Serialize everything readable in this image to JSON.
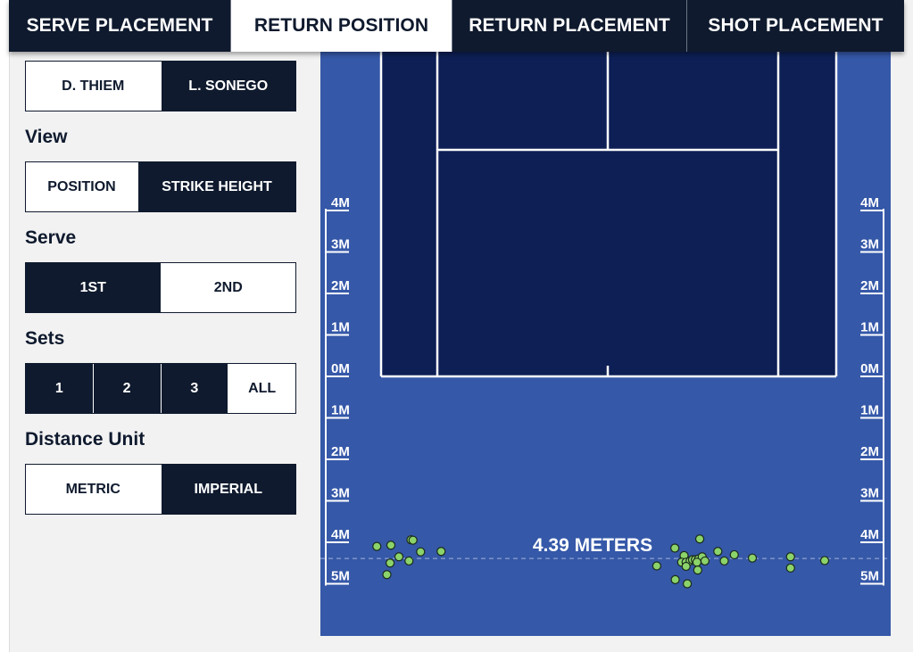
{
  "tabs": [
    {
      "label": "SERVE PLACEMENT",
      "active": false
    },
    {
      "label": "RETURN POSITION",
      "active": true
    },
    {
      "label": "RETURN PLACEMENT",
      "active": false
    },
    {
      "label": "SHOT PLACEMENT",
      "active": false
    }
  ],
  "players": {
    "options": [
      {
        "label": "D. THIEM",
        "selected": false
      },
      {
        "label": "L. SONEGO",
        "selected": true
      }
    ]
  },
  "view": {
    "title": "View",
    "options": [
      {
        "label": "POSITION",
        "selected": false
      },
      {
        "label": "STRIKE HEIGHT",
        "selected": true
      }
    ]
  },
  "serve": {
    "title": "Serve",
    "options": [
      {
        "label": "1ST",
        "selected": true
      },
      {
        "label": "2ND",
        "selected": false
      }
    ]
  },
  "sets": {
    "title": "Sets",
    "options": [
      {
        "label": "1",
        "selected": true
      },
      {
        "label": "2",
        "selected": true
      },
      {
        "label": "3",
        "selected": true
      },
      {
        "label": "ALL",
        "selected": false
      }
    ]
  },
  "distance_unit": {
    "title": "Distance Unit",
    "options": [
      {
        "label": "METRIC",
        "selected": false
      },
      {
        "label": "IMPERIAL",
        "selected": true
      }
    ]
  },
  "court": {
    "colors": {
      "surface": "#3558a8",
      "inner": "#0d1f55",
      "lines": "#ffffff",
      "point": "#8bd36a"
    },
    "ruler_labels": [
      "4M",
      "3M",
      "2M",
      "1M",
      "0M",
      "1M",
      "2M",
      "3M",
      "4M",
      "5M"
    ],
    "average_label": "4.39 METERS",
    "average_depth_m": 4.39,
    "return_points": [
      {
        "lateral_m": -5.75,
        "depth_m": 4.1
      },
      {
        "lateral_m": -5.4,
        "depth_m": 4.07
      },
      {
        "lateral_m": -5.2,
        "depth_m": 4.35
      },
      {
        "lateral_m": -5.42,
        "depth_m": 4.5
      },
      {
        "lateral_m": -5.5,
        "depth_m": 4.78
      },
      {
        "lateral_m": -4.9,
        "depth_m": 3.94
      },
      {
        "lateral_m": -4.85,
        "depth_m": 3.95
      },
      {
        "lateral_m": -4.66,
        "depth_m": 4.23
      },
      {
        "lateral_m": -4.15,
        "depth_m": 4.22
      },
      {
        "lateral_m": -4.95,
        "depth_m": 4.45
      },
      {
        "lateral_m": 1.22,
        "depth_m": 4.57
      },
      {
        "lateral_m": 1.67,
        "depth_m": 4.14
      },
      {
        "lateral_m": 1.9,
        "depth_m": 4.32
      },
      {
        "lateral_m": 2.29,
        "depth_m": 3.92
      },
      {
        "lateral_m": 1.84,
        "depth_m": 4.48
      },
      {
        "lateral_m": 1.95,
        "depth_m": 4.48
      },
      {
        "lateral_m": 2.05,
        "depth_m": 4.45
      },
      {
        "lateral_m": 2.11,
        "depth_m": 4.42
      },
      {
        "lateral_m": 2.18,
        "depth_m": 4.42
      },
      {
        "lateral_m": 2.26,
        "depth_m": 4.4
      },
      {
        "lateral_m": 2.35,
        "depth_m": 4.35
      },
      {
        "lateral_m": 2.22,
        "depth_m": 4.48
      },
      {
        "lateral_m": 2.42,
        "depth_m": 4.45
      },
      {
        "lateral_m": 1.95,
        "depth_m": 4.58
      },
      {
        "lateral_m": 2.24,
        "depth_m": 4.67
      },
      {
        "lateral_m": 1.68,
        "depth_m": 4.9
      },
      {
        "lateral_m": 1.98,
        "depth_m": 5.0
      },
      {
        "lateral_m": 2.74,
        "depth_m": 4.22
      },
      {
        "lateral_m": 2.9,
        "depth_m": 4.45
      },
      {
        "lateral_m": 3.15,
        "depth_m": 4.3
      },
      {
        "lateral_m": 3.6,
        "depth_m": 4.38
      },
      {
        "lateral_m": 4.55,
        "depth_m": 4.35
      },
      {
        "lateral_m": 4.55,
        "depth_m": 4.62
      },
      {
        "lateral_m": 5.4,
        "depth_m": 4.44
      }
    ]
  }
}
